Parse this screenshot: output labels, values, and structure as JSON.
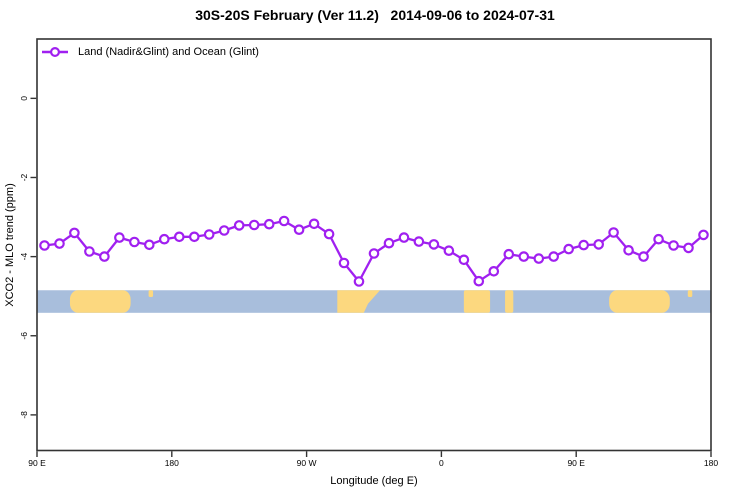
{
  "colors": {
    "line": "#A020F0",
    "marker_fill": "#FFFFFF",
    "ocean": "#A8BEDC",
    "land": "#FCD87F",
    "axis": "#333333",
    "text": "#000000"
  },
  "chart_data": {
    "type": "line",
    "title": "30S-20S February (Ver 11.2)   2014-09-06 to 2024-07-31",
    "xlabel": "Longitude (deg E)",
    "ylabel": "XCO2 - MLO trend (ppm)",
    "legend": [
      "Land (Nadir&Glint) and Ocean (Glint)"
    ],
    "legend_position": "top-left",
    "grid": false,
    "xlim": [
      90,
      540
    ],
    "ylim": [
      -8.9,
      1.5
    ],
    "x_ticks": [
      {
        "value": 90,
        "label": "90 E"
      },
      {
        "value": 180,
        "label": "180"
      },
      {
        "value": 270,
        "label": "90 W"
      },
      {
        "value": 360,
        "label": "0"
      },
      {
        "value": 450,
        "label": "90 E"
      },
      {
        "value": 540,
        "label": "180"
      }
    ],
    "y_ticks": [
      {
        "value": 0,
        "label": "0"
      },
      {
        "value": -2,
        "label": "-2"
      },
      {
        "value": -4,
        "label": "-4"
      },
      {
        "value": -6,
        "label": "-6"
      },
      {
        "value": -8,
        "label": "-8"
      }
    ],
    "series": [
      {
        "name": "Land (Nadir&Glint) and Ocean (Glint)",
        "x": [
          95,
          105,
          115,
          125,
          135,
          145,
          155,
          165,
          175,
          185,
          195,
          205,
          215,
          225,
          235,
          245,
          255,
          265,
          275,
          285,
          295,
          305,
          315,
          325,
          335,
          345,
          355,
          365,
          375,
          385,
          395,
          405,
          415,
          425,
          435,
          445,
          455,
          465,
          475,
          485,
          495,
          505,
          515,
          525,
          535
        ],
        "y": [
          -3.72,
          -3.67,
          -3.4,
          -3.87,
          -4.0,
          -3.52,
          -3.63,
          -3.7,
          -3.56,
          -3.5,
          -3.5,
          -3.44,
          -3.34,
          -3.21,
          -3.2,
          -3.18,
          -3.1,
          -3.32,
          -3.17,
          -3.43,
          -4.16,
          -4.63,
          -3.92,
          -3.66,
          -3.52,
          -3.62,
          -3.69,
          -3.85,
          -4.08,
          -4.62,
          -4.37,
          -3.94,
          -4.0,
          -4.05,
          -4.0,
          -3.81,
          -3.71,
          -3.69,
          -3.39,
          -3.84,
          -4.0,
          -3.56,
          -3.72,
          -3.78,
          -3.45
        ]
      }
    ],
    "map_band": {
      "description": "30S-20S latitude strip: ocean (blue) and land (tan) vs longitude",
      "y_top": -4.85,
      "y_bottom": -5.42,
      "land_segments": [
        {
          "name": "australia",
          "from": 112,
          "to": 152.5,
          "kind": "blob"
        },
        {
          "name": "new-caledonia",
          "from": 164.5,
          "to": 167.5,
          "kind": "island"
        },
        {
          "name": "south-america",
          "from": 290.5,
          "to": 319,
          "kind": "sa"
        },
        {
          "name": "africa",
          "from": 375,
          "to": 392.5,
          "kind": "rect"
        },
        {
          "name": "madagascar",
          "from": 402.5,
          "to": 408,
          "kind": "rect"
        },
        {
          "name": "australia-repeat",
          "from": 472,
          "to": 512.5,
          "kind": "blob"
        },
        {
          "name": "new-caledonia-repeat",
          "from": 524.5,
          "to": 527.5,
          "kind": "island"
        }
      ]
    }
  }
}
